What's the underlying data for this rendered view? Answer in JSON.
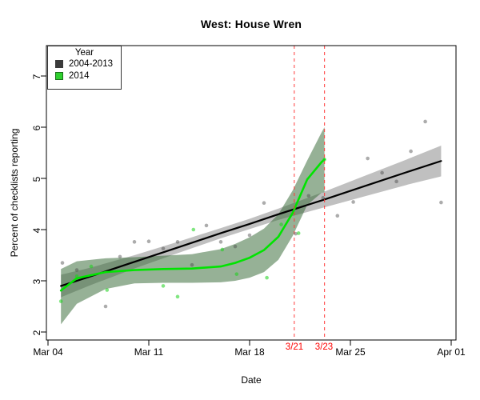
{
  "title": "West: House Wren",
  "axes": {
    "x_label": "Date",
    "y_label": "Percent of checklists reporting",
    "x_ticks": [
      "Mar 04",
      "Mar 11",
      "Mar 18",
      "Mar 25",
      "Apr 01"
    ],
    "y_ticks": [
      "2",
      "3",
      "4",
      "5",
      "6",
      "7"
    ]
  },
  "legend": {
    "title": "Year",
    "items": [
      {
        "label": "2004-2013",
        "color": "#3b3b3b"
      },
      {
        "label": "2014",
        "color": "#2fd02f"
      }
    ]
  },
  "annotations": {
    "vline_labels": [
      "3/21",
      "3/23"
    ],
    "vline_color": "#ff3333",
    "label_color": "#ff0000"
  },
  "colors": {
    "black_line": "#000000",
    "gray_band": "rgba(105,105,105,0.42)",
    "gray_points": "rgba(70,70,70,0.45)",
    "green_line": "#00e400",
    "green_band": "rgba(45,100,45,0.5)",
    "green_points": "rgba(25,210,25,0.55)",
    "axis": "#000000"
  },
  "chart_data": {
    "type": "scatter",
    "title": "West: House Wren",
    "xlabel": "Date",
    "ylabel": "Percent of checklists reporting",
    "x_unit": "days since Mar 04",
    "x_axis_tick_days": [
      0,
      7,
      14,
      21,
      28
    ],
    "x_axis_tick_labels": [
      "Mar 04",
      "Mar 11",
      "Mar 18",
      "Mar 25",
      "Apr 01"
    ],
    "y_axis_ticks": [
      2,
      3,
      4,
      5,
      6,
      7
    ],
    "xlim": [
      -0.1,
      28.3
    ],
    "ylim": [
      1.84,
      7.59
    ],
    "grid": false,
    "legend_position": "top-left",
    "series": [
      {
        "name": "2004-2013 observed",
        "kind": "points",
        "points": [
          [
            1,
            3.35
          ],
          [
            2,
            3.21
          ],
          [
            4,
            2.5
          ],
          [
            5,
            3.47
          ],
          [
            6,
            3.76
          ],
          [
            7,
            3.77
          ],
          [
            8,
            3.63
          ],
          [
            9,
            3.76
          ],
          [
            10,
            3.31
          ],
          [
            11,
            4.08
          ],
          [
            12,
            3.76
          ],
          [
            13,
            3.67
          ],
          [
            14,
            3.89
          ],
          [
            15,
            4.52
          ],
          [
            17.2,
            3.92
          ],
          [
            18.1,
            4.66
          ],
          [
            19.1,
            4.62
          ],
          [
            20.1,
            4.27
          ],
          [
            21.2,
            4.54
          ],
          [
            22.2,
            5.39
          ],
          [
            23.2,
            5.11
          ],
          [
            24.2,
            4.94
          ],
          [
            25.2,
            5.53
          ],
          [
            26.2,
            6.11
          ],
          [
            27.3,
            4.53
          ]
        ]
      },
      {
        "name": "2004-2013 linear trend with confidence band",
        "kind": "line+band",
        "x": [
          0.9,
          3,
          6,
          9,
          12,
          14,
          16,
          19,
          22,
          25,
          27.3
        ],
        "y": [
          2.9,
          3.09,
          3.37,
          3.65,
          3.93,
          4.11,
          4.3,
          4.57,
          4.85,
          5.13,
          5.34
        ],
        "upper": [
          3.12,
          3.26,
          3.5,
          3.76,
          4.03,
          4.21,
          4.41,
          4.72,
          5.05,
          5.38,
          5.64
        ],
        "lower": [
          2.68,
          2.92,
          3.24,
          3.54,
          3.83,
          4.01,
          4.19,
          4.42,
          4.65,
          4.88,
          5.04
        ]
      },
      {
        "name": "2014 observed",
        "kind": "points",
        "points": [
          [
            0.9,
            2.6
          ],
          [
            2,
            3.09
          ],
          [
            3,
            3.28
          ],
          [
            4.1,
            2.82
          ],
          [
            8,
            2.9
          ],
          [
            9,
            2.69
          ],
          [
            10.1,
            4.0
          ],
          [
            12.1,
            3.61
          ],
          [
            13.1,
            3.13
          ],
          [
            15.2,
            3.06
          ],
          [
            16.2,
            4.1
          ],
          [
            17.4,
            3.93
          ],
          [
            19.2,
            5.37
          ]
        ]
      },
      {
        "name": "2014 smoothed trend with confidence band",
        "kind": "line+band",
        "x": [
          0.9,
          2,
          4,
          6,
          8,
          10,
          12,
          13,
          14,
          15,
          16,
          17,
          18,
          19,
          19.2
        ],
        "y": [
          2.81,
          3.05,
          3.17,
          3.21,
          3.23,
          3.24,
          3.28,
          3.35,
          3.45,
          3.6,
          3.86,
          4.33,
          4.98,
          5.32,
          5.37
        ],
        "upper": [
          3.23,
          3.38,
          3.44,
          3.46,
          3.49,
          3.52,
          3.62,
          3.72,
          3.85,
          4.02,
          4.3,
          4.77,
          5.35,
          5.9,
          6.0
        ],
        "lower": [
          2.15,
          2.55,
          2.84,
          2.95,
          2.96,
          2.96,
          2.97,
          3.0,
          3.06,
          3.17,
          3.41,
          3.88,
          4.48,
          4.72,
          4.73
        ]
      }
    ],
    "vlines": [
      {
        "day": 17.1,
        "label": "3/21",
        "style": "dashed",
        "color": "#ff3333"
      },
      {
        "day": 19.2,
        "label": "3/23",
        "style": "dashed",
        "color": "#ff3333"
      }
    ]
  }
}
